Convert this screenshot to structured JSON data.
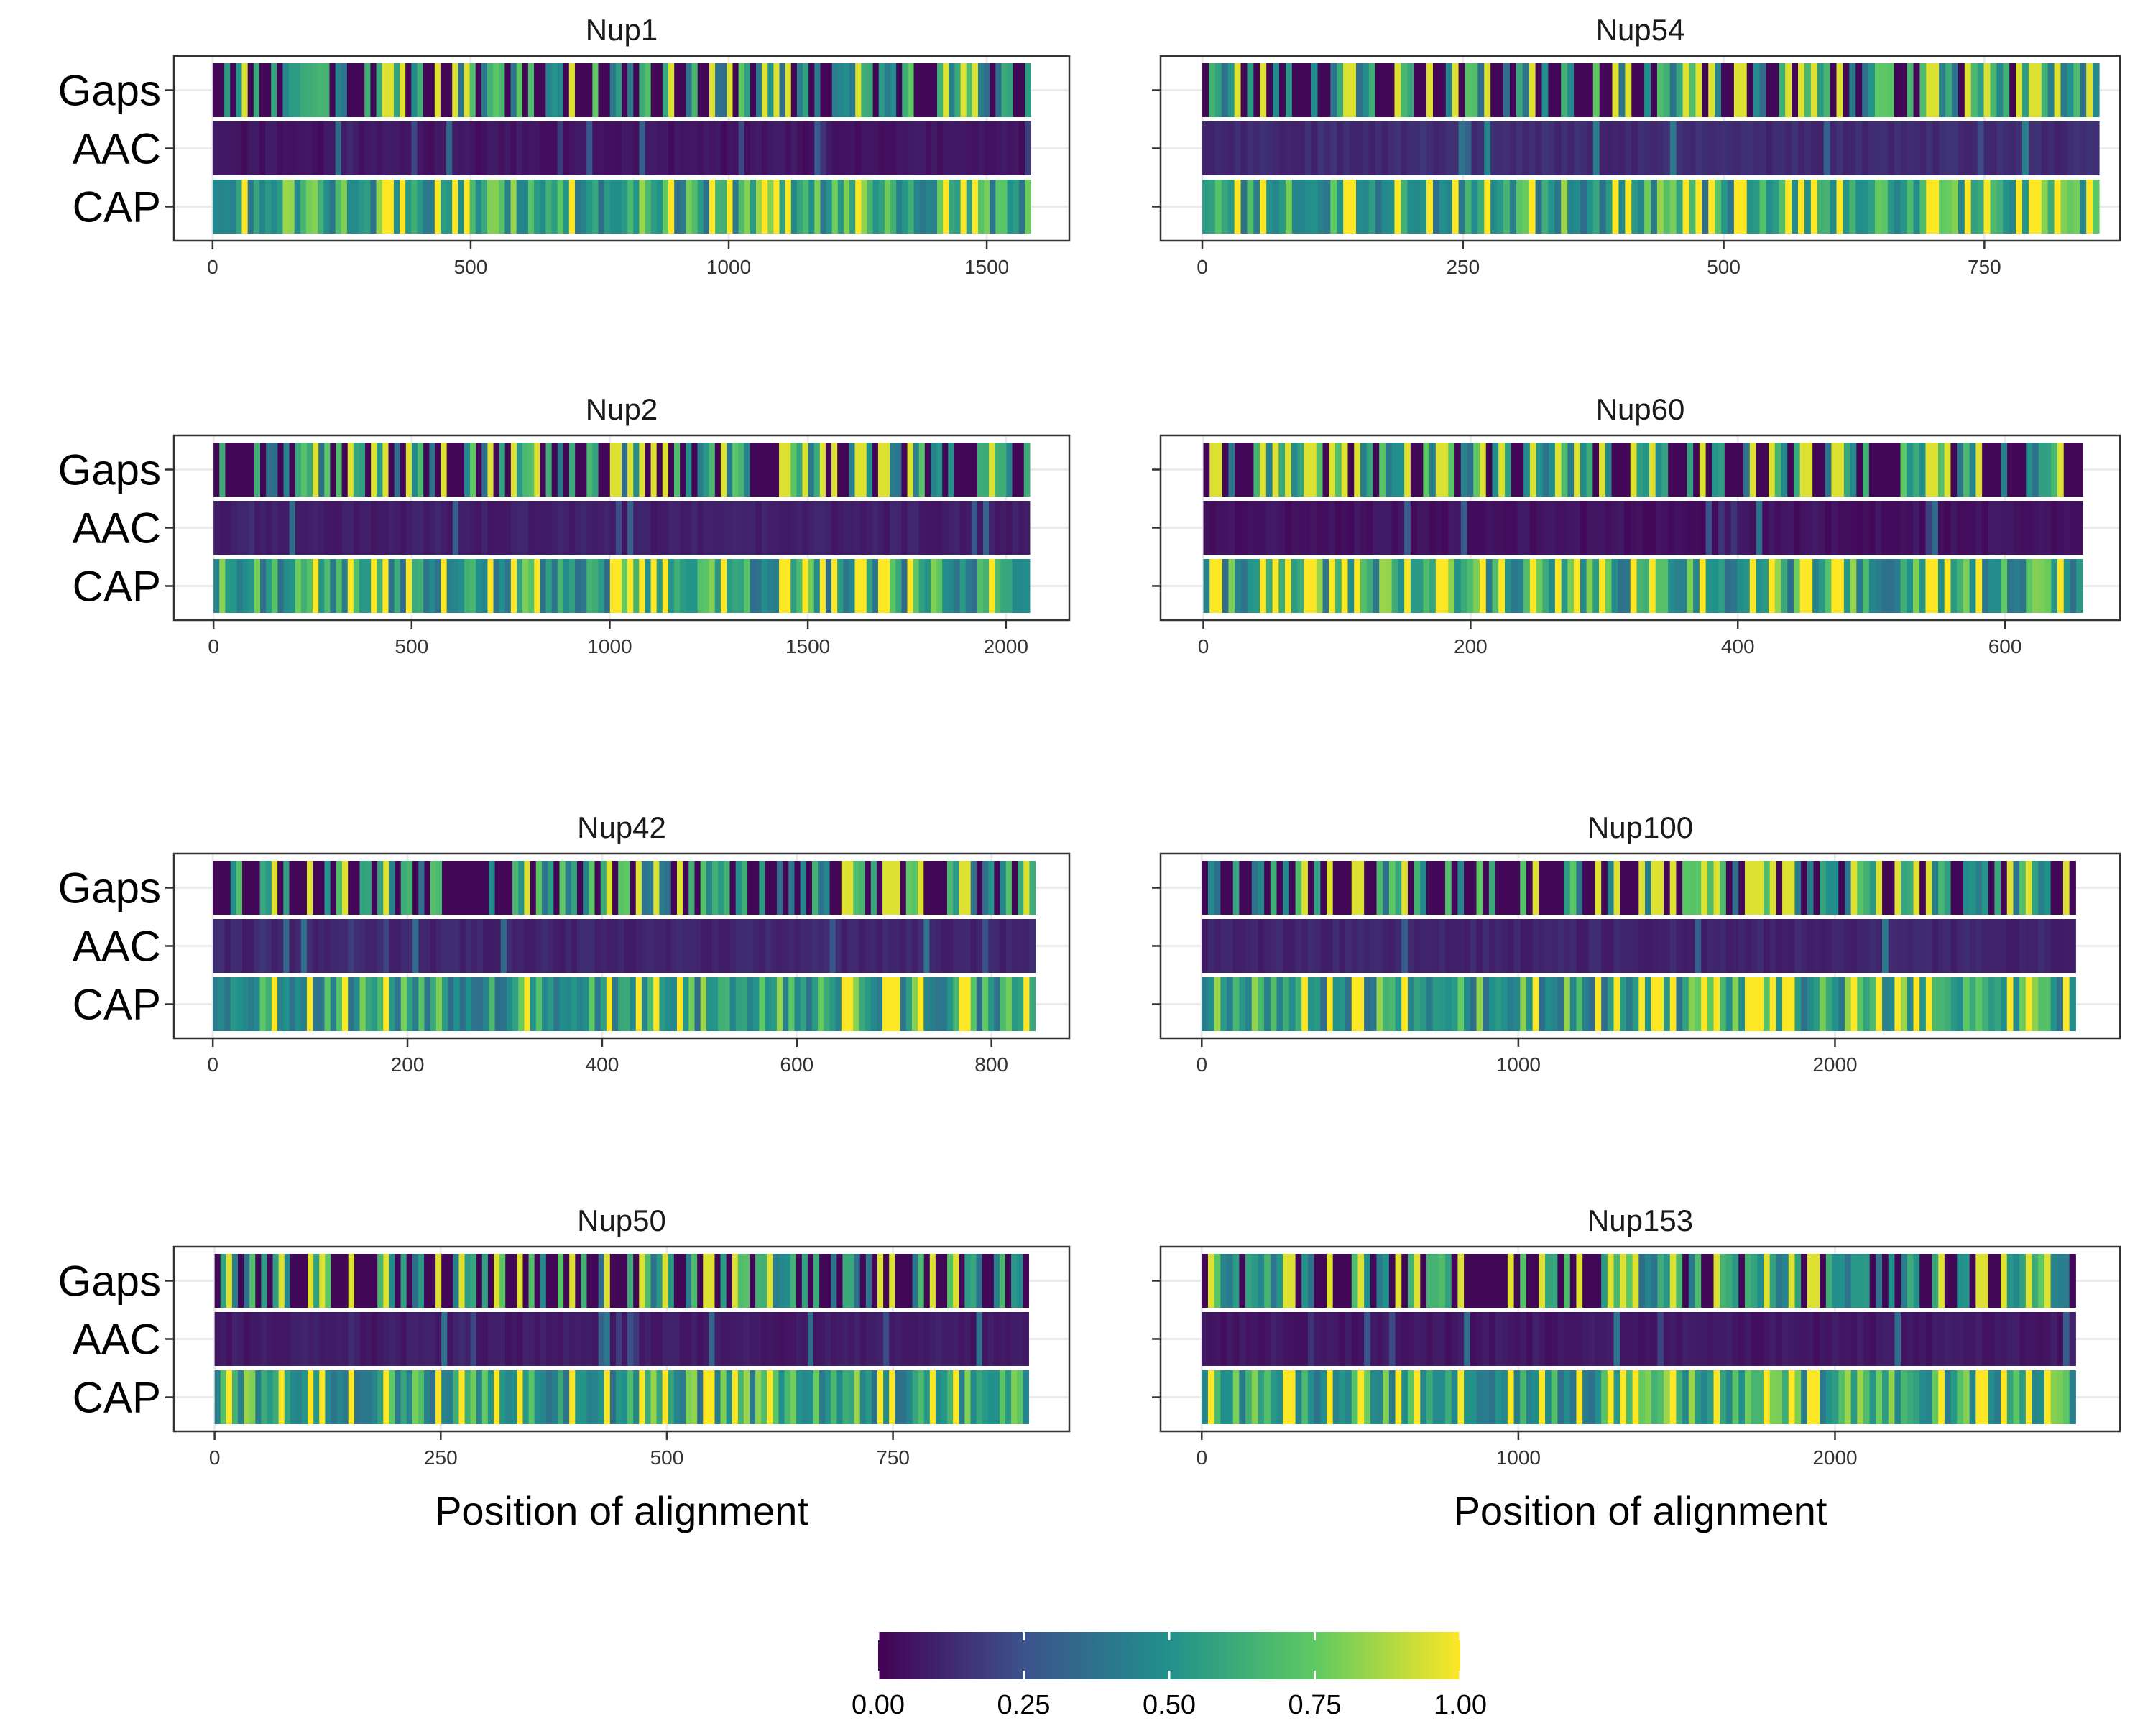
{
  "chart_data": {
    "type": "heatmap",
    "rows": [
      "Gaps",
      "AAC",
      "CAP"
    ],
    "xlabel": "Position of alignment",
    "colorscale": "viridis",
    "colorbar": {
      "ticks": [
        "0.00",
        "0.25",
        "0.50",
        "0.75",
        "1.00"
      ],
      "min": 0,
      "max": 1
    },
    "panels": [
      {
        "title": "Nup1",
        "length": 1585,
        "xticks": [
          0,
          500,
          1000,
          1500
        ],
        "xtick_labels": [
          "0",
          "500",
          "1000",
          "1500"
        ],
        "xlim": [
          -75,
          1660
        ],
        "gaps_level": 0.45,
        "aac_level": 0.03,
        "cap_level": 0.55,
        "seed": 11
      },
      {
        "title": "Nup54",
        "length": 860,
        "xticks": [
          0,
          250,
          500,
          750
        ],
        "xtick_labels": [
          "0",
          "250",
          "500",
          "750"
        ],
        "xlim": [
          -40,
          880
        ],
        "gaps_level": 0.4,
        "aac_level": 0.1,
        "cap_level": 0.6,
        "seed": 23
      },
      {
        "title": "Nup2",
        "length": 2060,
        "xticks": [
          0,
          500,
          1000,
          1500,
          2000
        ],
        "xtick_labels": [
          "0",
          "500",
          "1000",
          "1500",
          "2000"
        ],
        "xlim": [
          -100,
          2160
        ],
        "gaps_level": 0.55,
        "aac_level": 0.06,
        "cap_level": 0.6,
        "seed": 37
      },
      {
        "title": "Nup60",
        "length": 658,
        "xticks": [
          0,
          200,
          400,
          600
        ],
        "xtick_labels": [
          "0",
          "200",
          "400",
          "600"
        ],
        "xlim": [
          -32,
          686
        ],
        "gaps_level": 0.35,
        "aac_level": 0.02,
        "cap_level": 0.6,
        "seed": 41
      },
      {
        "title": "Nup42",
        "length": 845,
        "xticks": [
          0,
          200,
          400,
          600,
          800
        ],
        "xtick_labels": [
          "0",
          "200",
          "400",
          "600",
          "800"
        ],
        "xlim": [
          -40,
          880
        ],
        "gaps_level": 0.45,
        "aac_level": 0.08,
        "cap_level": 0.55,
        "seed": 53
      },
      {
        "title": "Nup100",
        "length": 2760,
        "xticks": [
          0,
          1000,
          2000
        ],
        "xtick_labels": [
          "0",
          "1000",
          "2000"
        ],
        "xlim": [
          -130,
          2900
        ],
        "gaps_level": 0.5,
        "aac_level": 0.08,
        "cap_level": 0.6,
        "seed": 67
      },
      {
        "title": "Nup50",
        "length": 900,
        "xticks": [
          0,
          250,
          500,
          750
        ],
        "xtick_labels": [
          "0",
          "250",
          "500",
          "750"
        ],
        "xlim": [
          -45,
          945
        ],
        "gaps_level": 0.5,
        "aac_level": 0.05,
        "cap_level": 0.65,
        "seed": 79
      },
      {
        "title": "Nup153",
        "length": 2760,
        "xticks": [
          0,
          1000,
          2000
        ],
        "xtick_labels": [
          "0",
          "1000",
          "2000"
        ],
        "xlim": [
          -130,
          2900
        ],
        "gaps_level": 0.4,
        "aac_level": 0.04,
        "cap_level": 0.6,
        "seed": 83
      }
    ]
  },
  "colors": {
    "viridis_0": "#440154",
    "viridis_1": "#3b528b",
    "viridis_2": "#21918c",
    "viridis_3": "#5ec962",
    "viridis_4": "#fde725",
    "frame": "#333333",
    "grid": "#ebebeb"
  }
}
